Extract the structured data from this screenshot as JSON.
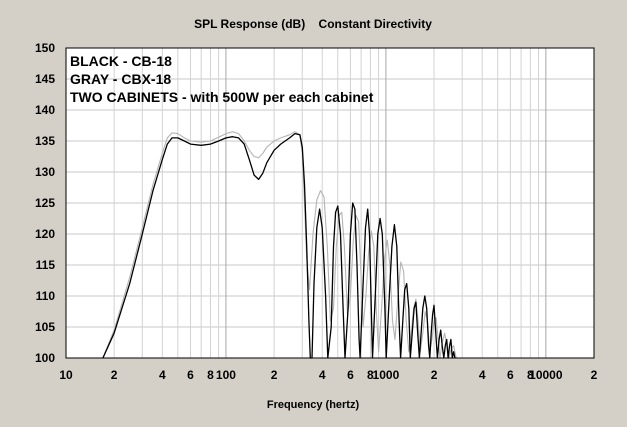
{
  "chart_data": {
    "type": "line",
    "title": "SPL Response (dB)    Constant Directivity",
    "xlabel": "Frequency (hertz)",
    "ylabel": "",
    "x_scale": "log",
    "xlim": [
      10,
      20000
    ],
    "ylim": [
      100,
      150
    ],
    "y_ticks": [
      "150",
      "145",
      "140",
      "135",
      "130",
      "125",
      "120",
      "115",
      "110",
      "105",
      "100"
    ],
    "x_ticks": [
      {
        "f": 10,
        "label": "10"
      },
      {
        "f": 20,
        "label": "2"
      },
      {
        "f": 40,
        "label": "4"
      },
      {
        "f": 60,
        "label": "6"
      },
      {
        "f": 80,
        "label": "8"
      },
      {
        "f": 100,
        "label": "100"
      },
      {
        "f": 200,
        "label": "2"
      },
      {
        "f": 400,
        "label": "4"
      },
      {
        "f": 600,
        "label": "6"
      },
      {
        "f": 800,
        "label": "8"
      },
      {
        "f": 1000,
        "label": "1000"
      },
      {
        "f": 2000,
        "label": "2"
      },
      {
        "f": 4000,
        "label": "4"
      },
      {
        "f": 6000,
        "label": "6"
      },
      {
        "f": 8000,
        "label": "8"
      },
      {
        "f": 10000,
        "label": "10000"
      },
      {
        "f": 20000,
        "label": "2"
      }
    ],
    "grid": true,
    "legend_lines": [
      "BLACK - CB-18",
      "GRAY - CBX-18",
      "TWO CABINETS - with 500W per each cabinet"
    ],
    "series": [
      {
        "name": "CB-18",
        "color": "#000000",
        "points": [
          [
            17,
            100
          ],
          [
            20,
            104
          ],
          [
            25,
            112
          ],
          [
            30,
            120
          ],
          [
            35,
            127
          ],
          [
            40,
            132
          ],
          [
            43,
            134.5
          ],
          [
            46,
            135.5
          ],
          [
            50,
            135.5
          ],
          [
            55,
            135
          ],
          [
            60,
            134.5
          ],
          [
            70,
            134.3
          ],
          [
            80,
            134.5
          ],
          [
            90,
            135
          ],
          [
            100,
            135.5
          ],
          [
            110,
            135.7
          ],
          [
            120,
            135.5
          ],
          [
            130,
            134.5
          ],
          [
            140,
            132
          ],
          [
            150,
            129.5
          ],
          [
            160,
            128.8
          ],
          [
            170,
            129.8
          ],
          [
            180,
            131.5
          ],
          [
            200,
            133.5
          ],
          [
            220,
            134.5
          ],
          [
            250,
            135.5
          ],
          [
            270,
            136.2
          ],
          [
            290,
            136
          ],
          [
            300,
            134
          ],
          [
            310,
            128
          ],
          [
            320,
            118
          ],
          [
            330,
            106
          ],
          [
            337,
            100
          ],
          [
            345,
            100
          ],
          [
            355,
            112
          ],
          [
            370,
            121
          ],
          [
            385,
            124
          ],
          [
            400,
            121
          ],
          [
            420,
            110
          ],
          [
            433,
            100
          ],
          [
            455,
            105
          ],
          [
            470,
            118
          ],
          [
            485,
            123.5
          ],
          [
            500,
            124.5
          ],
          [
            520,
            120
          ],
          [
            540,
            108
          ],
          [
            555,
            100
          ],
          [
            580,
            108
          ],
          [
            600,
            120
          ],
          [
            620,
            125
          ],
          [
            640,
            124
          ],
          [
            660,
            115
          ],
          [
            680,
            103
          ],
          [
            690,
            100
          ],
          [
            720,
            112
          ],
          [
            745,
            121
          ],
          [
            770,
            124
          ],
          [
            790,
            120
          ],
          [
            810,
            108
          ],
          [
            825,
            100
          ],
          [
            865,
            112
          ],
          [
            890,
            120
          ],
          [
            920,
            122.5
          ],
          [
            950,
            120
          ],
          [
            985,
            108
          ],
          [
            1005,
            100
          ],
          [
            1050,
            110
          ],
          [
            1090,
            118
          ],
          [
            1130,
            121.5
          ],
          [
            1170,
            118
          ],
          [
            1210,
            106
          ],
          [
            1235,
            100
          ],
          [
            1275,
            106
          ],
          [
            1310,
            111
          ],
          [
            1350,
            112
          ],
          [
            1390,
            108
          ],
          [
            1420,
            100
          ],
          [
            1460,
            104
          ],
          [
            1500,
            108
          ],
          [
            1540,
            109
          ],
          [
            1580,
            104
          ],
          [
            1620,
            100
          ],
          [
            1660,
            104
          ],
          [
            1700,
            108
          ],
          [
            1750,
            110
          ],
          [
            1800,
            108
          ],
          [
            1850,
            102
          ],
          [
            1880,
            100
          ],
          [
            1920,
            104
          ],
          [
            1960,
            107
          ],
          [
            2000,
            108.5
          ],
          [
            2050,
            104
          ],
          [
            2100,
            100
          ],
          [
            2150,
            103
          ],
          [
            2200,
            104.5
          ],
          [
            2250,
            102
          ],
          [
            2300,
            100
          ],
          [
            2350,
            102
          ],
          [
            2400,
            103
          ],
          [
            2450,
            100
          ],
          [
            2500,
            102
          ],
          [
            2550,
            103
          ],
          [
            2600,
            100
          ],
          [
            2650,
            101
          ],
          [
            2700,
            100
          ]
        ]
      },
      {
        "name": "CBX-18",
        "color": "#b4b4b4",
        "points": [
          [
            17,
            100
          ],
          [
            20,
            104.5
          ],
          [
            25,
            113
          ],
          [
            30,
            121
          ],
          [
            35,
            128
          ],
          [
            40,
            133
          ],
          [
            43,
            135.5
          ],
          [
            46,
            136.3
          ],
          [
            50,
            136.2
          ],
          [
            55,
            135.5
          ],
          [
            60,
            135
          ],
          [
            70,
            134.8
          ],
          [
            80,
            135
          ],
          [
            90,
            135.6
          ],
          [
            100,
            136.2
          ],
          [
            110,
            136.5
          ],
          [
            120,
            136.2
          ],
          [
            130,
            135
          ],
          [
            140,
            133.5
          ],
          [
            150,
            132.5
          ],
          [
            160,
            132.3
          ],
          [
            170,
            133
          ],
          [
            180,
            134
          ],
          [
            200,
            135
          ],
          [
            220,
            135.5
          ],
          [
            250,
            136
          ],
          [
            270,
            136.5
          ],
          [
            290,
            136
          ],
          [
            300,
            133
          ],
          [
            310,
            125
          ],
          [
            320,
            116
          ],
          [
            333,
            111
          ],
          [
            350,
            120
          ],
          [
            370,
            125.5
          ],
          [
            390,
            127
          ],
          [
            410,
            126
          ],
          [
            430,
            118
          ],
          [
            450,
            106
          ],
          [
            470,
            108
          ],
          [
            490,
            118
          ],
          [
            510,
            123
          ],
          [
            530,
            123.5
          ],
          [
            550,
            118
          ],
          [
            575,
            107
          ],
          [
            600,
            110
          ],
          [
            625,
            119
          ],
          [
            650,
            123
          ],
          [
            675,
            122
          ],
          [
            700,
            113
          ],
          [
            720,
            105
          ],
          [
            750,
            110
          ],
          [
            780,
            117
          ],
          [
            810,
            120.5
          ],
          [
            840,
            118
          ],
          [
            870,
            108
          ],
          [
            900,
            101
          ],
          [
            940,
            108
          ],
          [
            980,
            116
          ],
          [
            1020,
            119
          ],
          [
            1060,
            115
          ],
          [
            1100,
            106
          ],
          [
            1140,
            103
          ],
          [
            1190,
            110
          ],
          [
            1240,
            115.5
          ],
          [
            1290,
            114
          ],
          [
            1340,
            106
          ],
          [
            1390,
            101
          ],
          [
            1440,
            104
          ],
          [
            1490,
            108
          ],
          [
            1540,
            109.5
          ],
          [
            1590,
            106
          ],
          [
            1640,
            101
          ],
          [
            1700,
            104
          ],
          [
            1760,
            107.5
          ],
          [
            1820,
            106
          ],
          [
            1880,
            101
          ],
          [
            1940,
            103
          ],
          [
            2000,
            106
          ],
          [
            2060,
            106.5
          ],
          [
            2120,
            103
          ],
          [
            2180,
            100
          ],
          [
            2250,
            102.5
          ],
          [
            2330,
            104
          ],
          [
            2400,
            102
          ],
          [
            2480,
            100
          ],
          [
            2560,
            101.5
          ],
          [
            2650,
            102
          ],
          [
            2750,
            100
          ]
        ]
      }
    ]
  }
}
